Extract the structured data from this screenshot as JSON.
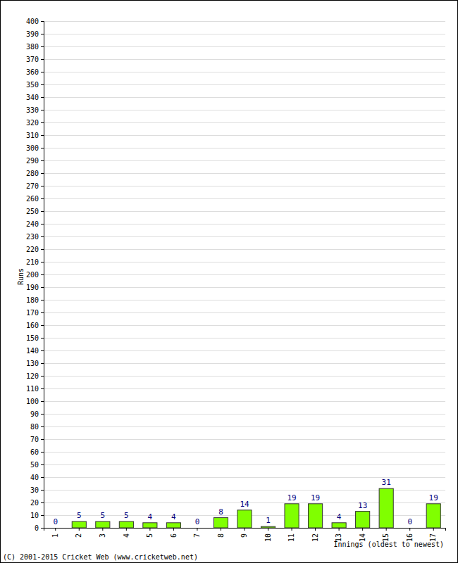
{
  "chart_data": {
    "type": "bar",
    "xlabel": "Innings (oldest to newest)",
    "ylabel": "Runs",
    "annotations": [
      "(C) 2001-2015 Cricket Web (www.cricketweb.net)"
    ],
    "categories": [
      "1",
      "2",
      "3",
      "4",
      "5",
      "6",
      "7",
      "8",
      "9",
      "10",
      "11",
      "12",
      "13",
      "14",
      "15",
      "16",
      "17"
    ],
    "values": [
      0,
      5,
      5,
      5,
      4,
      4,
      0,
      8,
      14,
      1,
      19,
      19,
      4,
      13,
      31,
      0,
      19
    ],
    "color": "#80ff00",
    "ylim": [
      0,
      400
    ],
    "yticks": [
      0,
      10,
      20,
      30,
      40,
      50,
      60,
      70,
      80,
      90,
      100,
      110,
      120,
      130,
      140,
      150,
      160,
      170,
      180,
      190,
      200,
      210,
      220,
      230,
      240,
      250,
      260,
      270,
      280,
      290,
      300,
      310,
      320,
      330,
      340,
      350,
      360,
      370,
      380,
      390,
      400
    ],
    "grid": true,
    "data_labels": true
  }
}
